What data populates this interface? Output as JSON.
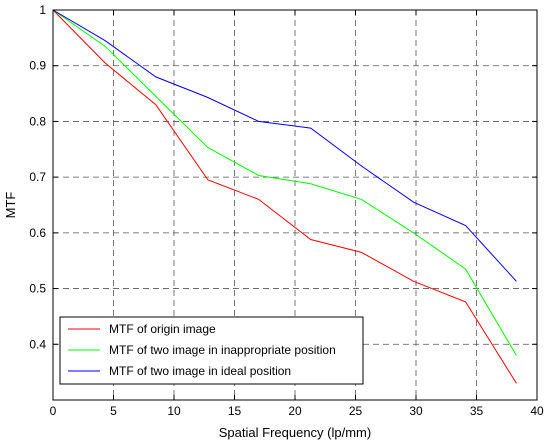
{
  "chart_data": {
    "type": "line",
    "title": "",
    "xlabel": "Spatial Frequency (lp/mm)",
    "ylabel": "MTF",
    "xlim": [
      0,
      40
    ],
    "ylim": [
      0.3,
      1.0
    ],
    "xticks": [
      0,
      5,
      10,
      15,
      20,
      25,
      30,
      35,
      40
    ],
    "xtick_labels": [
      "0",
      "5",
      "10",
      "15",
      "20",
      "25",
      "30",
      "35",
      "40"
    ],
    "yticks": [
      0.4,
      0.5,
      0.6,
      0.7,
      0.8,
      0.9,
      1.0
    ],
    "ytick_labels": [
      "0.4",
      "0.5",
      "0.6",
      "0.7",
      "0.8",
      "0.9",
      "1"
    ],
    "grid": true,
    "legend_position": "bottom-left",
    "series": [
      {
        "name": "MTF of origin image",
        "color": "#ff0000",
        "x": [
          0,
          4.3,
          8.5,
          12.8,
          17.0,
          21.3,
          25.5,
          29.8,
          34.1,
          38.3
        ],
        "y": [
          1.0,
          0.905,
          0.83,
          0.695,
          0.66,
          0.588,
          0.565,
          0.513,
          0.476,
          0.33
        ]
      },
      {
        "name": "MTF of two image in inappropriate position",
        "color": "#00ff00",
        "x": [
          0,
          4.3,
          8.5,
          12.8,
          17.0,
          21.3,
          25.5,
          29.8,
          34.1,
          38.3
        ],
        "y": [
          1.0,
          0.935,
          0.845,
          0.753,
          0.703,
          0.688,
          0.66,
          0.6,
          0.535,
          0.38
        ]
      },
      {
        "name": "MTF of two image in ideal position",
        "color": "#0000ff",
        "x": [
          0,
          4.3,
          8.5,
          12.8,
          17.0,
          21.3,
          25.5,
          29.8,
          34.1,
          38.3
        ],
        "y": [
          1.0,
          0.945,
          0.88,
          0.843,
          0.8,
          0.788,
          0.72,
          0.655,
          0.613,
          0.513
        ]
      }
    ]
  }
}
